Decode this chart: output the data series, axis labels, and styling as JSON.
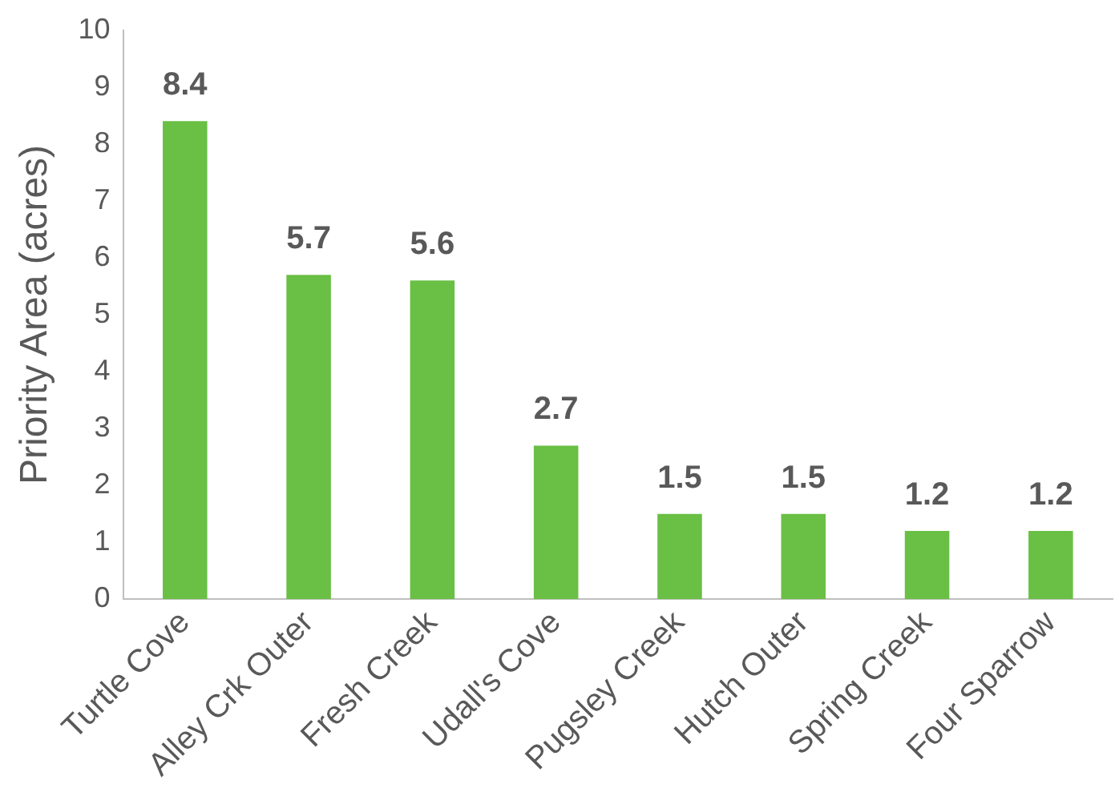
{
  "chart_data": {
    "type": "bar",
    "ylabel": "Priority Area (acres)",
    "categories": [
      "Turtle Cove",
      "Alley Crk Outer",
      "Fresh Creek",
      "Udall's Cove",
      "Pugsley Creek",
      "Hutch Outer",
      "Spring Creek",
      "Four Sparrow"
    ],
    "values": [
      8.4,
      5.7,
      5.6,
      2.7,
      1.5,
      1.5,
      1.2,
      1.2
    ],
    "color": "#6abf45",
    "ylim": [
      0,
      10
    ],
    "yticks": [
      0,
      1,
      2,
      3,
      4,
      5,
      6,
      7,
      8,
      9,
      10
    ],
    "grid": false,
    "legend": false,
    "data_labels": true
  }
}
